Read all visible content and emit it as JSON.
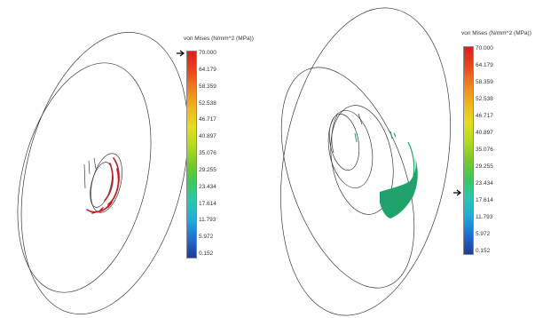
{
  "left_panel": {
    "legend": {
      "title": "von Mises (N/mm^2 (MPa))",
      "ticks": [
        "70.000",
        "64.179",
        "58.359",
        "52.538",
        "46.717",
        "40.897",
        "35.076",
        "29.255",
        "23.434",
        "17.614",
        "11.793",
        "5.972",
        "0.152"
      ],
      "pointer_value": 70.0
    },
    "stress_color": "#c41e1e"
  },
  "right_panel": {
    "legend": {
      "title": "von Mises (N/mm^2 (MPa))",
      "ticks": [
        "70.000",
        "64.179",
        "58.359",
        "52.538",
        "46.717",
        "40.897",
        "35.076",
        "29.255",
        "23.434",
        "17.614",
        "11.793",
        "5.972",
        "0.152"
      ],
      "pointer_value": 20.5
    },
    "stress_color": "#1fa36a"
  },
  "colormap": [
    "#1e3c96",
    "#1e6ed2",
    "#1eaadc",
    "#28c8b4",
    "#3cc85a",
    "#78c828",
    "#b4dc1e",
    "#e6dc1e",
    "#f0b41e",
    "#f0821e",
    "#e6461e",
    "#dc1e1e"
  ]
}
